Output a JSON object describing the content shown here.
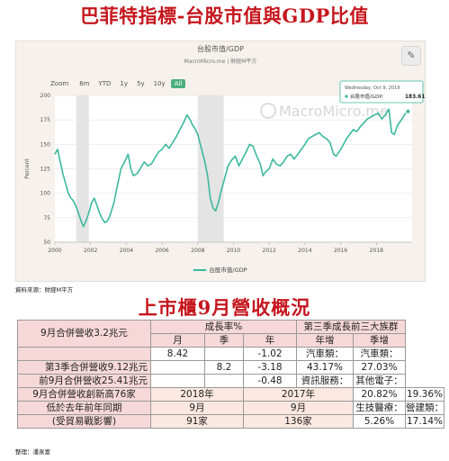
{
  "title1": "巴菲特指標-台股市值與GDP比值",
  "chart_data": {
    "type": "line",
    "title": "台股市值/GDP",
    "subtitle": "MacroMicro.me | 財經M平方",
    "ylabel": "Percent",
    "xlabel": "",
    "ylim": [
      50,
      200
    ],
    "yticks": [
      50,
      75,
      100,
      125,
      150,
      175,
      200
    ],
    "xlim": [
      2000,
      2020
    ],
    "xticks": [
      2000,
      2002,
      2004,
      2006,
      2008,
      2010,
      2012,
      2014,
      2016,
      2018
    ],
    "recession_bands": [
      [
        2001.2,
        2001.9
      ],
      [
        2008.0,
        2009.45
      ]
    ],
    "watermark": "MacroMicro.me",
    "zoom_label": "Zoom",
    "zoom_buttons": [
      "6m",
      "YTD",
      "1y",
      "5y",
      "10y",
      "All"
    ],
    "zoom_selected": "All",
    "series": [
      {
        "name": "台股市值/GDP",
        "color": "#3bb89e",
        "x": [
          2000.0,
          2000.15,
          2000.3,
          2000.45,
          2000.6,
          2000.75,
          2000.9,
          2001.05,
          2001.2,
          2001.35,
          2001.5,
          2001.6,
          2001.75,
          2001.9,
          2002.05,
          2002.2,
          2002.35,
          2002.5,
          2002.65,
          2002.8,
          2002.95,
          2003.1,
          2003.3,
          2003.5,
          2003.7,
          2003.9,
          2004.1,
          2004.25,
          2004.4,
          2004.6,
          2004.8,
          2005.0,
          2005.2,
          2005.4,
          2005.6,
          2005.8,
          2006.0,
          2006.2,
          2006.4,
          2006.6,
          2006.8,
          2007.0,
          2007.2,
          2007.4,
          2007.55,
          2007.7,
          2007.85,
          2008.0,
          2008.2,
          2008.4,
          2008.55,
          2008.7,
          2008.85,
          2009.0,
          2009.15,
          2009.3,
          2009.5,
          2009.7,
          2009.9,
          2010.1,
          2010.3,
          2010.5,
          2010.7,
          2010.9,
          2011.1,
          2011.3,
          2011.5,
          2011.65,
          2011.8,
          2012.0,
          2012.2,
          2012.4,
          2012.6,
          2012.8,
          2013.0,
          2013.2,
          2013.4,
          2013.6,
          2013.8,
          2014.0,
          2014.2,
          2014.4,
          2014.6,
          2014.8,
          2015.0,
          2015.2,
          2015.4,
          2015.6,
          2015.75,
          2015.9,
          2016.1,
          2016.3,
          2016.5,
          2016.7,
          2016.9,
          2017.1,
          2017.3,
          2017.5,
          2017.7,
          2017.9,
          2018.1,
          2018.3,
          2018.5,
          2018.7,
          2018.85,
          2019.0,
          2019.2,
          2019.4,
          2019.6,
          2019.77
        ],
        "y": [
          140,
          145,
          132,
          120,
          110,
          100,
          95,
          92,
          86,
          78,
          70,
          66,
          72,
          80,
          90,
          95,
          88,
          80,
          74,
          70,
          72,
          78,
          90,
          108,
          125,
          132,
          140,
          125,
          118,
          120,
          126,
          132,
          128,
          130,
          136,
          142,
          145,
          150,
          146,
          152,
          158,
          165,
          172,
          180,
          176,
          170,
          166,
          160,
          146,
          132,
          118,
          95,
          85,
          82,
          90,
          102,
          115,
          128,
          134,
          138,
          128,
          135,
          142,
          150,
          148,
          138,
          130,
          118,
          122,
          125,
          135,
          130,
          128,
          132,
          138,
          140,
          135,
          140,
          145,
          150,
          156,
          158,
          160,
          162,
          158,
          156,
          152,
          140,
          138,
          142,
          148,
          155,
          160,
          165,
          163,
          168,
          172,
          176,
          178,
          180,
          182,
          176,
          180,
          186,
          162,
          160,
          170,
          175,
          181,
          183.61
        ]
      }
    ],
    "tooltip": {
      "date": "Wednesday, Oct 9, 2019",
      "series": "台股市值/GDP",
      "value": "183.61"
    }
  },
  "source1": "資料來源：財經M平方",
  "title2": "上市櫃9月營收概況",
  "table": {
    "growth_header": "成長率%",
    "top3_header": "第三季成長前三大族群",
    "col_month": "月",
    "col_quarter": "季",
    "col_year": "年",
    "col_yoy": "年增",
    "col_qoq": "季增",
    "rows": [
      {
        "label": "9月合併營收3.2兆元",
        "month": "8.42",
        "quarter": "",
        "year": "-1.02"
      },
      {
        "label": "第3季合併營收9.12兆元",
        "month": "",
        "quarter": "8.2",
        "year": "-3.18"
      },
      {
        "label": "前9月合併營收25.41兆元",
        "month": "",
        "quarter": "",
        "year": "-0.48"
      }
    ],
    "yoy_groups": [
      "汽車類：",
      "43.17%",
      "資訊服務：",
      "20.82%",
      "生技醫療：",
      "5.26%"
    ],
    "qoq_groups": [
      "汽車類：",
      "27.03%",
      "其他電子：",
      "19.36%",
      "營建類：",
      "17.14%"
    ],
    "record_label": [
      "9月合併營收創新高76家",
      "低於去年前年同期",
      "(受貿易戰影響)"
    ],
    "record_y1_label": [
      "2018年",
      "9月"
    ],
    "record_y2_label": [
      "2017年",
      "9月"
    ],
    "record_y1_value": "91家",
    "record_y2_value": "136家"
  },
  "source2": "整理：潘泉富"
}
